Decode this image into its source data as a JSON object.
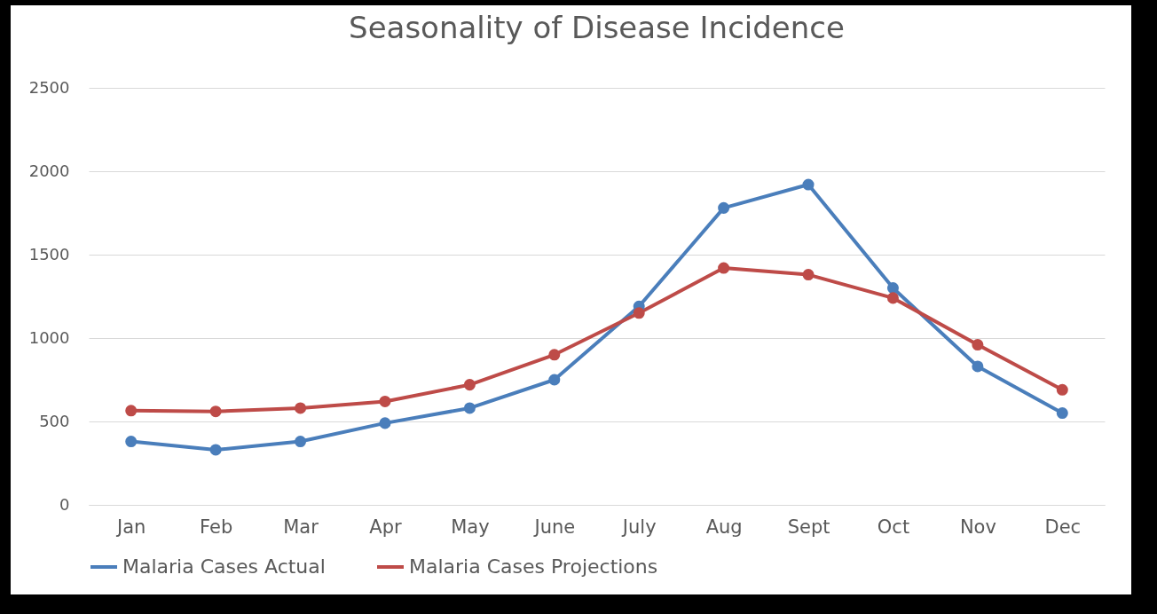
{
  "chart_data": {
    "type": "line",
    "title": "Seasonality of Disease Incidence",
    "categories": [
      "Jan",
      "Feb",
      "Mar",
      "Apr",
      "May",
      "June",
      "July",
      "Aug",
      "Sept",
      "Oct",
      "Nov",
      "Dec"
    ],
    "series": [
      {
        "name": "Malaria Cases Actual",
        "color": "#4a7ebb",
        "values": [
          380,
          330,
          380,
          490,
          580,
          750,
          1190,
          1780,
          1920,
          1300,
          830,
          550
        ]
      },
      {
        "name": "Malaria Cases Projections",
        "color": "#be4b48",
        "values": [
          565,
          560,
          580,
          620,
          720,
          900,
          1150,
          1420,
          1380,
          1240,
          960,
          690
        ]
      }
    ],
    "ylim": [
      0,
      2500
    ],
    "yticks": [
      0,
      500,
      1000,
      1500,
      2000,
      2500
    ],
    "grid": "y",
    "legend": "bottom",
    "marker": "circle",
    "line_style": "solid"
  }
}
